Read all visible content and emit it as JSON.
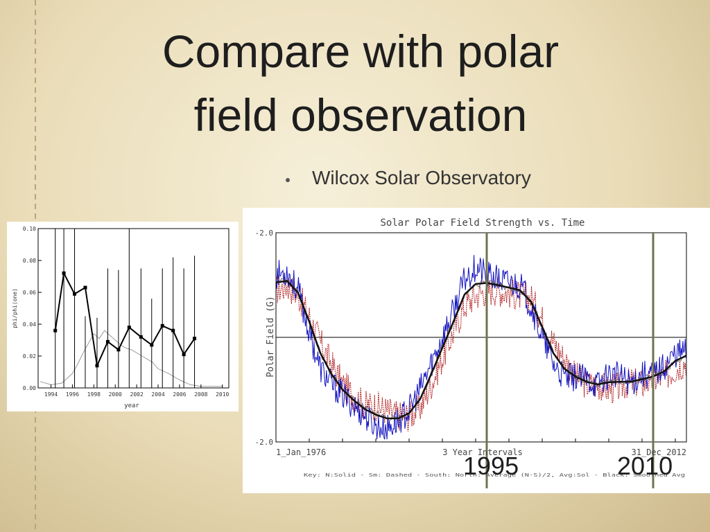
{
  "slide": {
    "title_line1": "Compare with polar",
    "title_line2": "field observation",
    "bullet": "Wilcox Solar Observatory",
    "year_labels": [
      "1995",
      "2010"
    ]
  },
  "colors": {
    "accent_line": "#6f7350",
    "blue": "#1010c0",
    "red": "#b02020"
  },
  "chart_data": [
    {
      "type": "line",
      "xlabel": "year",
      "ylabel": "phi/phi(one)",
      "ylim": [
        0.0,
        0.1
      ],
      "xlim": [
        1992.8,
        2010.6
      ],
      "yticks": [
        "0.00",
        "0.02",
        "0.04",
        "0.06",
        "0.08",
        "0.10"
      ],
      "xticks": [
        "1994",
        "1996",
        "1998",
        "2000",
        "2002",
        "2004",
        "2006",
        "2008",
        "2010"
      ],
      "series": [
        {
          "name": "",
          "x": [
            1994.4,
            1995.2,
            1996.2,
            1997.2,
            1998.3,
            1999.3,
            2000.3,
            2001.3,
            2002.4,
            2003.4,
            2004.4,
            2005.4,
            2006.4,
            2007.4
          ],
          "y": [
            0.036,
            0.072,
            0.059,
            0.063,
            0.014,
            0.029,
            0.024,
            0.038,
            0.032,
            0.027,
            0.039,
            0.036,
            0.021,
            0.031
          ],
          "err_top": [
            0.1,
            0.1,
            0.1,
            0.045,
            0.044,
            0.075,
            0.074,
            0.1,
            0.075,
            0.056,
            0.075,
            0.082,
            0.075,
            0.083
          ],
          "err_bottom": [
            0,
            0,
            0,
            0,
            0,
            0,
            0,
            0,
            0,
            0,
            0,
            0,
            0,
            0
          ]
        },
        {
          "name": "",
          "x": [
            1993.0,
            1994.0,
            1995.0,
            1996.0,
            1996.5,
            1997.0,
            1997.5,
            1998.0,
            1998.5,
            1999.0,
            1999.5,
            2000.0,
            2000.5,
            2001.0,
            2001.5,
            2002.0,
            2002.5,
            2003.0,
            2003.5,
            2004.0,
            2005.0,
            2006.0,
            2007.0,
            2008.0,
            2009.0,
            2010.0
          ],
          "y": [
            0.004,
            0.002,
            0.003,
            0.009,
            0.015,
            0.022,
            0.028,
            0.034,
            0.031,
            0.036,
            0.033,
            0.03,
            0.027,
            0.025,
            0.024,
            0.022,
            0.02,
            0.018,
            0.016,
            0.012,
            0.009,
            0.005,
            0.002,
            0.001,
            0.001,
            0.001
          ]
        }
      ]
    },
    {
      "type": "line",
      "title": "Solar Polar Field Strength vs. Time",
      "ylabel": "Polar Field (G)",
      "ylim": [
        -2.0,
        2.0
      ],
      "xlim": [
        1976.0,
        2013.0
      ],
      "yticks": [
        "-2.0",
        "-2.0"
      ],
      "x_left_label": "1_Jan_1976",
      "x_center_label": "3 Year Intervals",
      "x_right_label": "31_Dec_2012",
      "key_text": "Key: N:Solid - Sm: Dashed - South: North: Average (N-S)/2, Avg:Sol - Black: Smoothed Avg",
      "markers": [
        1995,
        2010
      ],
      "series": [
        {
          "name": "",
          "x": [
            1976,
            1977,
            1978,
            1979,
            1980,
            1981,
            1982,
            1983,
            1984,
            1985,
            1986,
            1987,
            1988,
            1989,
            1990,
            1991,
            1992,
            1993,
            1994,
            1995,
            1996,
            1997,
            1998,
            1999,
            2000,
            2001,
            2002,
            2003,
            2004,
            2005,
            2006,
            2007,
            2008,
            2009,
            2010,
            2011,
            2012,
            2013
          ],
          "y": [
            1.05,
            1.1,
            0.85,
            0.3,
            -0.3,
            -0.7,
            -1.0,
            -1.2,
            -1.35,
            -1.45,
            -1.55,
            -1.55,
            -1.45,
            -1.2,
            -0.7,
            -0.2,
            0.3,
            0.8,
            1.0,
            1.05,
            1.0,
            0.95,
            0.9,
            0.7,
            0.2,
            -0.3,
            -0.6,
            -0.75,
            -0.85,
            -0.9,
            -0.85,
            -0.85,
            -0.85,
            -0.8,
            -0.75,
            -0.65,
            -0.45,
            -0.35
          ]
        },
        {
          "name": "",
          "x": [
            1976,
            1977,
            1978,
            1979,
            1980,
            1981,
            1982,
            1983,
            1984,
            1985,
            1986,
            1987,
            1988,
            1989,
            1990,
            1991,
            1992,
            1993,
            1994,
            1995,
            1996,
            1997,
            1998,
            1999,
            2000,
            2001,
            2002,
            2003,
            2004,
            2005,
            2006,
            2007,
            2008,
            2009,
            2010,
            2011,
            2012,
            2013
          ],
          "y": [
            1.2,
            1.25,
            0.9,
            0.1,
            -0.6,
            -0.9,
            -1.1,
            -1.3,
            -1.5,
            -1.7,
            -1.75,
            -1.6,
            -1.4,
            -1.0,
            -0.5,
            0.0,
            0.5,
            1.1,
            1.35,
            1.2,
            1.1,
            1.05,
            1.0,
            0.6,
            0.0,
            -0.5,
            -0.8,
            -0.75,
            -0.8,
            -0.9,
            -0.7,
            -0.75,
            -0.85,
            -0.7,
            -0.7,
            -0.55,
            -0.3,
            -0.25
          ]
        },
        {
          "name": "",
          "x": [
            1976,
            1977,
            1978,
            1979,
            1980,
            1981,
            1982,
            1983,
            1984,
            1985,
            1986,
            1987,
            1988,
            1989,
            1990,
            1991,
            1992,
            1993,
            1994,
            1995,
            1996,
            1997,
            1998,
            1999,
            2000,
            2001,
            2002,
            2003,
            2004,
            2005,
            2006,
            2007,
            2008,
            2009,
            2010,
            2011,
            2012,
            2013
          ],
          "y": [
            0.9,
            1.0,
            0.8,
            0.4,
            -0.1,
            -0.5,
            -0.9,
            -1.1,
            -1.3,
            -1.3,
            -1.4,
            -1.5,
            -1.5,
            -1.35,
            -0.9,
            -0.4,
            0.1,
            0.6,
            0.8,
            0.9,
            0.9,
            0.85,
            0.8,
            0.75,
            0.35,
            -0.1,
            -0.4,
            -0.75,
            -0.9,
            -0.9,
            -1.0,
            -0.95,
            -0.85,
            -0.9,
            -0.8,
            -0.75,
            -0.6,
            -0.45
          ]
        },
        {
          "name": "",
          "x": [
            1976,
            1977,
            1978,
            1979,
            1980,
            1981,
            1982,
            1983,
            1984,
            1985,
            1986,
            1987,
            1988,
            1989,
            1990,
            1991,
            1992,
            1993,
            1994,
            1995,
            1996,
            1997,
            1998,
            1999,
            2000,
            2001,
            2002,
            2003,
            2004,
            2005,
            2006,
            2007,
            2008,
            2009,
            2010,
            2011,
            2012,
            2013
          ],
          "y": [
            1.05,
            1.08,
            0.85,
            0.3,
            -0.3,
            -0.7,
            -1.0,
            -1.2,
            -1.37,
            -1.48,
            -1.55,
            -1.55,
            -1.45,
            -1.18,
            -0.7,
            -0.2,
            0.3,
            0.82,
            1.02,
            1.04,
            1.0,
            0.95,
            0.9,
            0.68,
            0.2,
            -0.3,
            -0.6,
            -0.75,
            -0.85,
            -0.9,
            -0.86,
            -0.85,
            -0.85,
            -0.8,
            -0.75,
            -0.65,
            -0.45,
            -0.35
          ]
        }
      ]
    }
  ]
}
